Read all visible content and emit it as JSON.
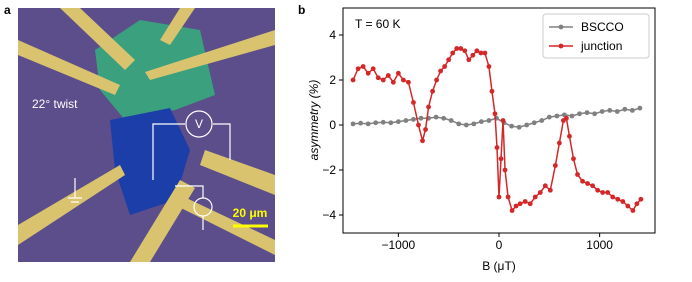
{
  "panel_a": {
    "label": "a",
    "twist": "22° twist",
    "scale_bar": "20 μm",
    "meter": "V"
  },
  "chart_data": {
    "type": "line",
    "panel_label": "b",
    "annotation": "T = 60 K",
    "xlabel": "B (μT)",
    "ylabel": "asymmetry (%)",
    "xlim": [
      -1550,
      1550
    ],
    "ylim": [
      -4.8,
      5.2
    ],
    "xticks": [
      {
        "value": -1000,
        "label": "−1000"
      },
      0,
      1000
    ],
    "yticks": [
      {
        "value": -4,
        "label": "−4"
      },
      {
        "value": -2,
        "label": "−2"
      },
      0,
      2,
      4
    ],
    "legend": "upper right",
    "series": [
      {
        "name": "BSCCO",
        "color": "#808080",
        "x": [
          -1450,
          -1375,
          -1300,
          -1225,
          -1150,
          -1075,
          -1000,
          -925,
          -850,
          -775,
          -700,
          -625,
          -550,
          -475,
          -400,
          -325,
          -250,
          -175,
          -100,
          -25,
          50,
          125,
          200,
          275,
          350,
          425,
          500,
          575,
          650,
          725,
          800,
          875,
          950,
          1025,
          1100,
          1175,
          1250,
          1325,
          1400
        ],
        "values": [
          0.05,
          0.08,
          0.05,
          0.1,
          0.12,
          0.1,
          0.15,
          0.2,
          0.25,
          0.3,
          0.3,
          0.35,
          0.3,
          0.2,
          0.05,
          0.0,
          0.05,
          0.15,
          0.2,
          0.3,
          0.1,
          -0.05,
          -0.1,
          0.0,
          0.1,
          0.2,
          0.35,
          0.4,
          0.45,
          0.4,
          0.5,
          0.55,
          0.5,
          0.6,
          0.65,
          0.6,
          0.7,
          0.65,
          0.75
        ]
      },
      {
        "name": "junction",
        "color": "#d62728",
        "x": [
          -1450,
          -1400,
          -1350,
          -1300,
          -1250,
          -1200,
          -1150,
          -1100,
          -1050,
          -1000,
          -950,
          -900,
          -850,
          -800,
          -760,
          -730,
          -700,
          -660,
          -620,
          -580,
          -540,
          -500,
          -460,
          -420,
          -380,
          -340,
          -300,
          -260,
          -220,
          -180,
          -140,
          -100,
          -70,
          -40,
          -20,
          0,
          20,
          40,
          60,
          90,
          130,
          170,
          210,
          260,
          310,
          360,
          410,
          460,
          510,
          560,
          600,
          640,
          670,
          700,
          740,
          780,
          830,
          880,
          930,
          980,
          1030,
          1080,
          1130,
          1180,
          1230,
          1280,
          1330,
          1370,
          1410
        ],
        "values": [
          2.0,
          2.5,
          2.6,
          2.3,
          2.5,
          2.1,
          2.0,
          2.2,
          1.9,
          2.3,
          2.0,
          1.9,
          1.0,
          0.0,
          -0.7,
          -0.2,
          0.8,
          1.5,
          2.0,
          2.4,
          2.6,
          2.9,
          3.2,
          3.4,
          3.4,
          3.3,
          2.9,
          3.1,
          3.3,
          3.2,
          3.2,
          2.6,
          1.5,
          0.5,
          -1.0,
          -3.2,
          -1.5,
          0.2,
          -2.0,
          -3.2,
          -3.8,
          -3.6,
          -3.5,
          -3.4,
          -3.5,
          -3.2,
          -3.0,
          -2.7,
          -2.9,
          -1.8,
          -0.8,
          0.2,
          0.3,
          -0.5,
          -1.5,
          -2.2,
          -2.5,
          -2.6,
          -2.7,
          -2.9,
          -3.0,
          -3.0,
          -3.2,
          -3.3,
          -3.4,
          -3.6,
          -3.8,
          -3.5,
          -3.3
        ]
      }
    ]
  }
}
